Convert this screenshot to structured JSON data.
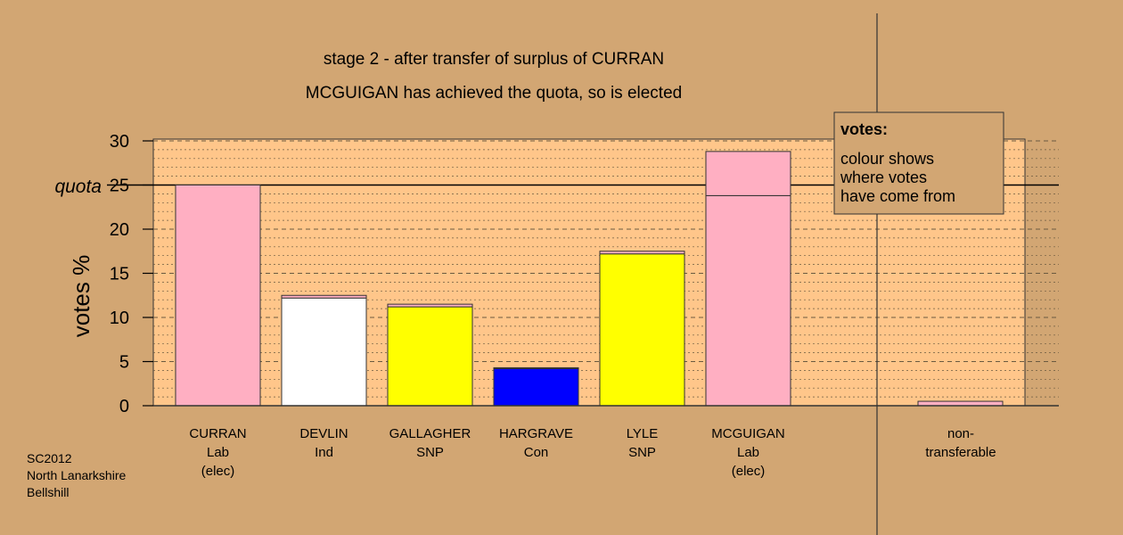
{
  "chart_data": {
    "type": "bar",
    "title": "stage 2 - after transfer of surplus of CURRAN",
    "subtitle": "MCGUIGAN has achieved the quota, so is elected",
    "ylabel": "votes %",
    "ylim": [
      0,
      30
    ],
    "yticks": [
      0,
      5,
      10,
      15,
      20,
      25,
      30
    ],
    "quota": 25,
    "quota_label": "quota",
    "grid": true,
    "candidates": [
      {
        "name": "CURRAN",
        "party": "Lab",
        "note": "(elec)",
        "color": "#ffafc2",
        "segments": [
          {
            "value": 25.0,
            "color": "#ffafc2"
          }
        ]
      },
      {
        "name": "DEVLIN",
        "party": "Ind",
        "note": "",
        "color": "#ffffff",
        "segments": [
          {
            "value": 12.2,
            "color": "#ffffff"
          },
          {
            "value": 0.3,
            "color": "#ffafc2"
          }
        ]
      },
      {
        "name": "GALLAGHER",
        "party": "SNP",
        "note": "",
        "color": "#ffff00",
        "segments": [
          {
            "value": 11.2,
            "color": "#ffff00"
          },
          {
            "value": 0.3,
            "color": "#ffafc2"
          }
        ]
      },
      {
        "name": "HARGRAVE",
        "party": "Con",
        "note": "",
        "color": "#0000ff",
        "segments": [
          {
            "value": 4.2,
            "color": "#0000ff"
          },
          {
            "value": 0.1,
            "color": "#ffafc2"
          }
        ]
      },
      {
        "name": "LYLE",
        "party": "SNP",
        "note": "",
        "color": "#ffff00",
        "segments": [
          {
            "value": 17.2,
            "color": "#ffff00"
          },
          {
            "value": 0.3,
            "color": "#ffafc2"
          }
        ]
      },
      {
        "name": "MCGUIGAN",
        "party": "Lab",
        "note": "(elec)",
        "color": "#ffafc2",
        "segments": [
          {
            "value": 23.8,
            "color": "#ffafc2"
          },
          {
            "value": 5.0,
            "color": "#ffafc2"
          }
        ]
      }
    ],
    "nontransferable": {
      "label_line1": "non-",
      "label_line2": "transferable",
      "value": 0.5,
      "color": "#ffafc2"
    },
    "legend": {
      "title": "votes:",
      "lines": [
        "colour shows",
        "where votes",
        "have come from"
      ],
      "placement": "top-right"
    }
  },
  "footer": {
    "line1": "SC2012",
    "line2": "North Lanarkshire",
    "line3": "Bellshill"
  }
}
